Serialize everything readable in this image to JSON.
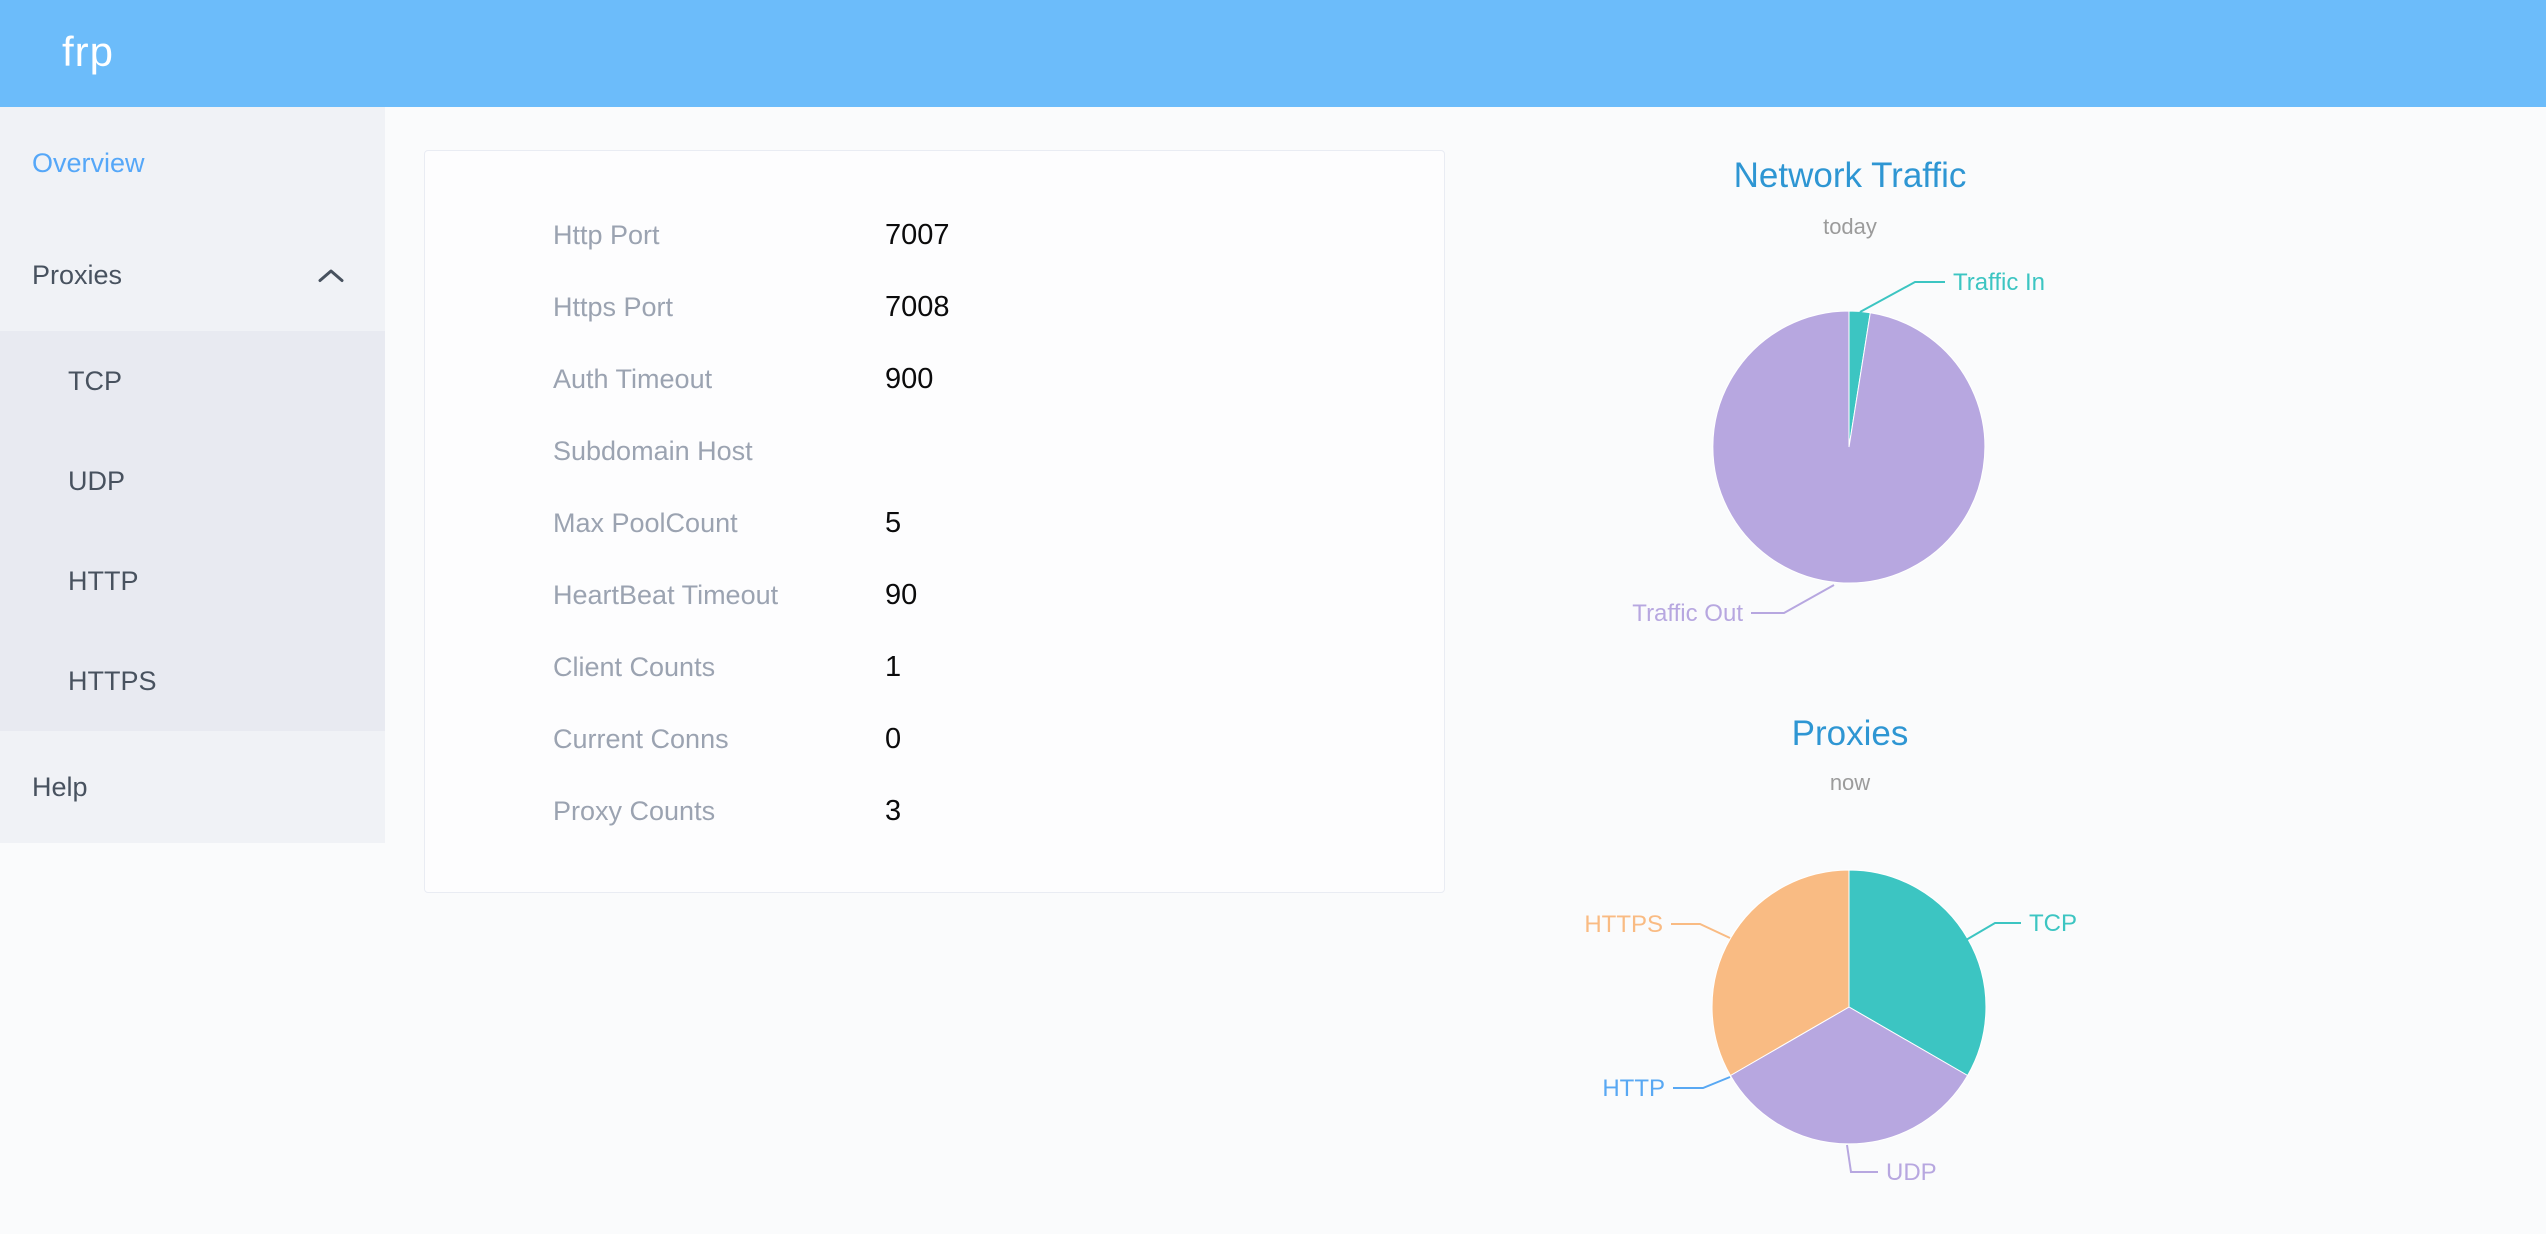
{
  "header": {
    "logo_text": "frp",
    "bg_color": "#6cbcfa"
  },
  "sidebar": {
    "overview": "Overview",
    "proxies": "Proxies",
    "proxy_types": [
      "TCP",
      "UDP",
      "HTTP",
      "HTTPS"
    ],
    "help": "Help",
    "active_item": "Overview",
    "active_color": "#55a7f8",
    "text_color": "#48525f",
    "chevron_state": "expanded"
  },
  "server_info": {
    "rows": [
      {
        "label": "Http Port",
        "value": "7007"
      },
      {
        "label": "Https Port",
        "value": "7008"
      },
      {
        "label": "Auth Timeout",
        "value": "900"
      },
      {
        "label": "Subdomain Host",
        "value": ""
      },
      {
        "label": "Max PoolCount",
        "value": "5"
      },
      {
        "label": "HeartBeat Timeout",
        "value": "90"
      },
      {
        "label": "Client Counts",
        "value": "1"
      },
      {
        "label": "Current Conns",
        "value": "0"
      },
      {
        "label": "Proxy Counts",
        "value": "3"
      }
    ]
  },
  "chart_data": [
    {
      "type": "pie",
      "title": "Network Traffic",
      "subtitle": "today",
      "title_color": "#2e96d3",
      "subtitle_color": "#9b9b9b",
      "legend_position": "callout-labels",
      "slices": [
        {
          "label": "Traffic In",
          "value_percent": 2.5,
          "color": "#3cc5c2"
        },
        {
          "label": "Traffic Out",
          "value_percent": 97.5,
          "color": "#b7a7e0"
        }
      ]
    },
    {
      "type": "pie",
      "title": "Proxies",
      "subtitle": "now",
      "title_color": "#2e96d3",
      "subtitle_color": "#9b9b9b",
      "legend_position": "callout-labels",
      "slices": [
        {
          "label": "TCP",
          "value": 1,
          "color": "#3cc5c2"
        },
        {
          "label": "UDP",
          "value": 1,
          "color": "#b7a7e0"
        },
        {
          "label": "HTTP",
          "value": 0,
          "color": "#58a8f3"
        },
        {
          "label": "HTTPS",
          "value": 1,
          "color": "#f9bb83"
        }
      ]
    }
  ]
}
